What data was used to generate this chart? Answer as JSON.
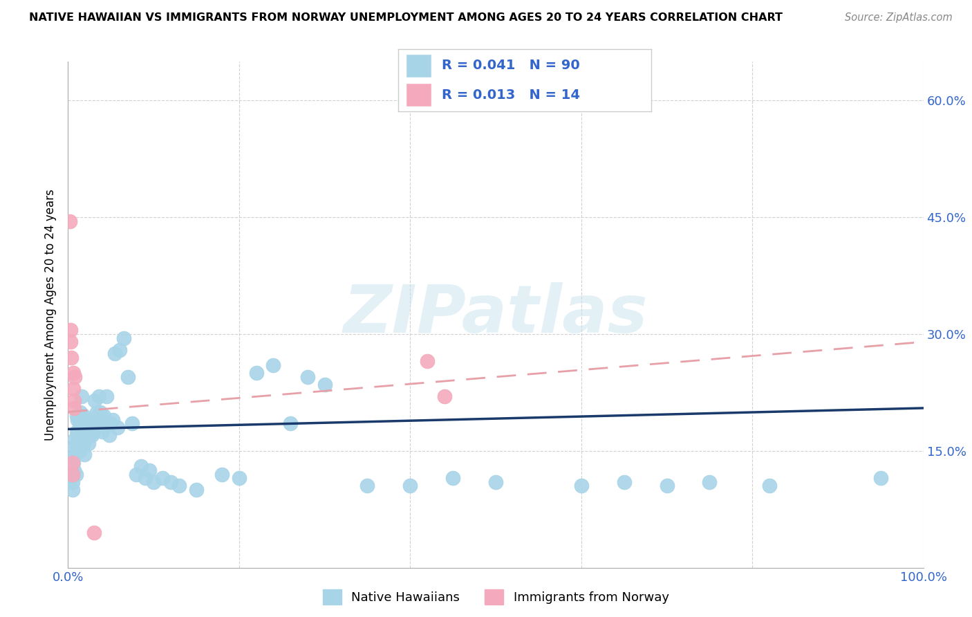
{
  "title": "NATIVE HAWAIIAN VS IMMIGRANTS FROM NORWAY UNEMPLOYMENT AMONG AGES 20 TO 24 YEARS CORRELATION CHART",
  "source": "Source: ZipAtlas.com",
  "ylabel": "Unemployment Among Ages 20 to 24 years",
  "xlim": [
    0,
    1.0
  ],
  "ylim": [
    0,
    0.65
  ],
  "y_ticks": [
    0.15,
    0.3,
    0.45,
    0.6
  ],
  "y_tick_labels": [
    "15.0%",
    "30.0%",
    "45.0%",
    "60.0%"
  ],
  "blue_color": "#A8D4E8",
  "pink_color": "#F4AABC",
  "line_blue": "#1A3A6B",
  "line_pink": "#E8A0A8",
  "watermark": "ZIPatlas",
  "blue_scatter_x": [
    0.003,
    0.003,
    0.004,
    0.004,
    0.005,
    0.005,
    0.005,
    0.006,
    0.007,
    0.007,
    0.008,
    0.008,
    0.009,
    0.01,
    0.01,
    0.01,
    0.011,
    0.011,
    0.012,
    0.012,
    0.013,
    0.014,
    0.014,
    0.015,
    0.015,
    0.016,
    0.016,
    0.017,
    0.018,
    0.018,
    0.019,
    0.02,
    0.02,
    0.021,
    0.022,
    0.023,
    0.024,
    0.025,
    0.026,
    0.027,
    0.028,
    0.03,
    0.031,
    0.032,
    0.033,
    0.034,
    0.035,
    0.036,
    0.037,
    0.038,
    0.04,
    0.041,
    0.042,
    0.044,
    0.045,
    0.048,
    0.05,
    0.052,
    0.055,
    0.058,
    0.06,
    0.065,
    0.07,
    0.075,
    0.08,
    0.085,
    0.09,
    0.095,
    0.1,
    0.11,
    0.12,
    0.13,
    0.15,
    0.18,
    0.2,
    0.22,
    0.24,
    0.26,
    0.28,
    0.3,
    0.35,
    0.4,
    0.45,
    0.5,
    0.6,
    0.65,
    0.7,
    0.75,
    0.82,
    0.95
  ],
  "blue_scatter_y": [
    0.13,
    0.12,
    0.125,
    0.115,
    0.14,
    0.11,
    0.1,
    0.135,
    0.155,
    0.125,
    0.145,
    0.165,
    0.12,
    0.175,
    0.155,
    0.195,
    0.16,
    0.19,
    0.165,
    0.175,
    0.15,
    0.185,
    0.2,
    0.17,
    0.185,
    0.22,
    0.175,
    0.155,
    0.16,
    0.195,
    0.145,
    0.175,
    0.185,
    0.17,
    0.19,
    0.175,
    0.16,
    0.18,
    0.175,
    0.185,
    0.17,
    0.175,
    0.215,
    0.19,
    0.185,
    0.2,
    0.195,
    0.22,
    0.185,
    0.2,
    0.175,
    0.19,
    0.195,
    0.185,
    0.22,
    0.17,
    0.185,
    0.19,
    0.275,
    0.18,
    0.28,
    0.295,
    0.245,
    0.185,
    0.12,
    0.13,
    0.115,
    0.125,
    0.11,
    0.115,
    0.11,
    0.105,
    0.1,
    0.12,
    0.115,
    0.25,
    0.26,
    0.185,
    0.245,
    0.235,
    0.105,
    0.105,
    0.115,
    0.11,
    0.105,
    0.11,
    0.105,
    0.11,
    0.105,
    0.115
  ],
  "pink_scatter_x": [
    0.002,
    0.003,
    0.003,
    0.004,
    0.005,
    0.005,
    0.006,
    0.006,
    0.007,
    0.007,
    0.008,
    0.03,
    0.42,
    0.44
  ],
  "pink_scatter_y": [
    0.445,
    0.305,
    0.29,
    0.27,
    0.135,
    0.12,
    0.23,
    0.25,
    0.215,
    0.205,
    0.245,
    0.045,
    0.265,
    0.22
  ],
  "blue_line_x": [
    0.0,
    1.0
  ],
  "blue_line_y": [
    0.178,
    0.205
  ],
  "pink_line_x": [
    0.0,
    1.0
  ],
  "pink_line_y": [
    0.2,
    0.29
  ]
}
